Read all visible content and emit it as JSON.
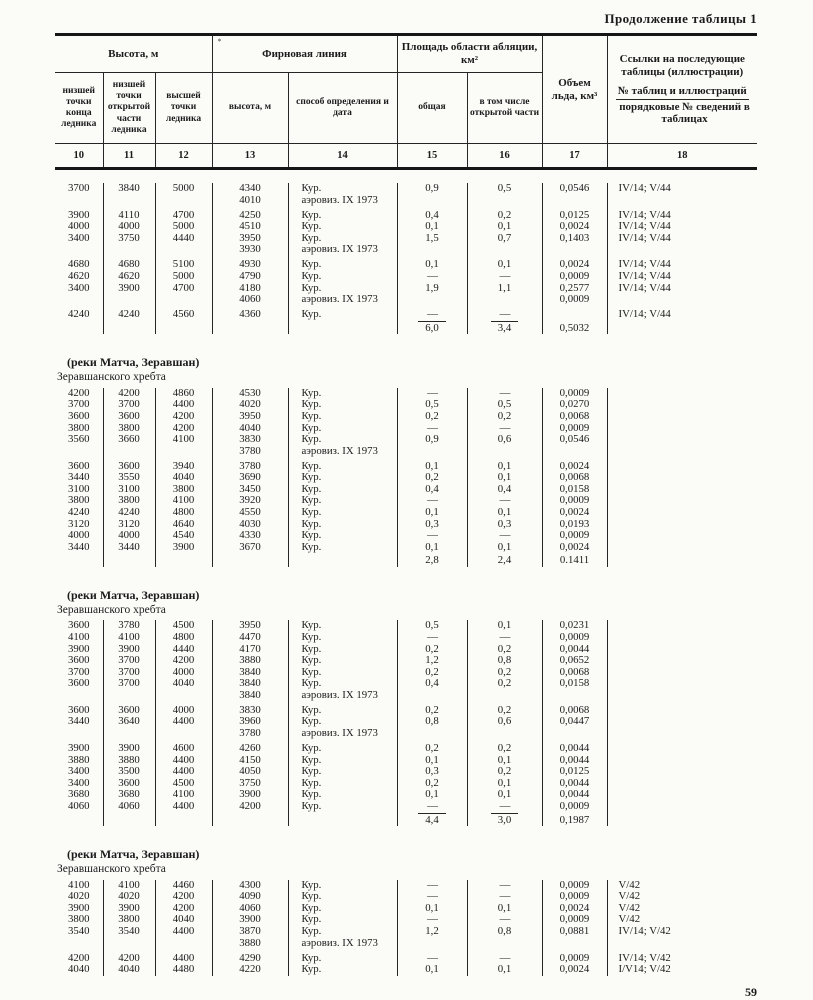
{
  "page": {
    "continuation": "Продолжение таблицы 1",
    "page_number": "59"
  },
  "colors": {
    "ink": "#1b1b1b",
    "paper": "#fbfbf8"
  },
  "header": {
    "groups": {
      "height": "Высота, м",
      "firn": "Фирновая линия",
      "ablation": "Площадь области абляции, км²",
      "volume": "Объем льда, км³"
    },
    "firn_mark": "*",
    "links": {
      "line1": "Ссылки на последующие таблицы (иллюстрации)",
      "line2": "№ таблиц и иллюстраций",
      "line3": "порядковые № сведений в таблицах"
    },
    "subheaders": [
      "низшей точки конца ледника",
      "низшей точки открытой части ледника",
      "высшей точки ледника",
      "высота, м",
      "способ определения и дата",
      "общая",
      "в том числе открытой части"
    ],
    "columns": [
      "10",
      "11",
      "12",
      "13",
      "14",
      "15",
      "16",
      "17",
      "18"
    ]
  },
  "sections": [
    {
      "title": "",
      "subtitle": "",
      "rows": [
        {
          "cells": [
            "3700",
            "3840",
            "5000",
            "4340",
            "Кур.",
            "0,9",
            "0,5",
            "0,0546",
            "IV/14; V/44"
          ]
        },
        {
          "cells": [
            "",
            "",
            "",
            "4010",
            "аэровиз. IX 1973",
            "",
            "",
            "",
            ""
          ]
        },
        {
          "cells": [
            "3900",
            "4110",
            "4700",
            "4250",
            "Кур.",
            "0,4",
            "0,2",
            "0,0125",
            "IV/14; V/44"
          ],
          "gap": true
        },
        {
          "cells": [
            "4000",
            "4000",
            "5000",
            "4510",
            "Кур.",
            "0,1",
            "0,1",
            "0,0024",
            "IV/14; V/44"
          ]
        },
        {
          "cells": [
            "3400",
            "3750",
            "4440",
            "3950",
            "Кур.",
            "1,5",
            "0,7",
            "0,1403",
            "IV/14; V/44"
          ]
        },
        {
          "cells": [
            "",
            "",
            "",
            "3930",
            "аэровиз. IX 1973",
            "",
            "",
            "",
            ""
          ]
        },
        {
          "cells": [
            "4680",
            "4680",
            "5100",
            "4930",
            "Кур.",
            "0,1",
            "0,1",
            "0,0024",
            "IV/14; V/44"
          ],
          "gap": true
        },
        {
          "cells": [
            "4620",
            "4620",
            "5000",
            "4790",
            "Кур.",
            "—",
            "—",
            "0,0009",
            "IV/14; V/44"
          ]
        },
        {
          "cells": [
            "3400",
            "3900",
            "4700",
            "4180",
            "Кур.",
            "1,9",
            "1,1",
            "0,2577",
            "IV/14; V/44"
          ]
        },
        {
          "cells": [
            "",
            "",
            "",
            "4060",
            "аэровиз. IX 1973",
            "",
            "",
            "0,0009",
            ""
          ]
        },
        {
          "cells": [
            "4240",
            "4240",
            "4560",
            "4360",
            "Кур.",
            "—",
            "—",
            "",
            "IV/14; V/44"
          ],
          "gap": true
        }
      ],
      "totals": {
        "cells": [
          "",
          "",
          "",
          "",
          "",
          "6,0",
          "3,4",
          "0,5032",
          ""
        ],
        "rule": true
      }
    },
    {
      "title": "(реки Матча, Зеравшан)",
      "subtitle": "Зеравшанского хребта",
      "rows": [
        {
          "cells": [
            "4200",
            "4200",
            "4860",
            "4530",
            "Кур.",
            "—",
            "—",
            "0,0009",
            ""
          ]
        },
        {
          "cells": [
            "3700",
            "3700",
            "4400",
            "4020",
            "Кур.",
            "0,5",
            "0,5",
            "0,0270",
            ""
          ]
        },
        {
          "cells": [
            "3600",
            "3600",
            "4200",
            "3950",
            "Кур.",
            "0,2",
            "0,2",
            "0,0068",
            ""
          ]
        },
        {
          "cells": [
            "3800",
            "3800",
            "4200",
            "4040",
            "Кур.",
            "—",
            "—",
            "0,0009",
            ""
          ]
        },
        {
          "cells": [
            "3560",
            "3660",
            "4100",
            "3830",
            "Кур.",
            "0,9",
            "0,6",
            "0,0546",
            ""
          ]
        },
        {
          "cells": [
            "",
            "",
            "",
            "3780",
            "аэровиз. IX 1973",
            "",
            "",
            "",
            ""
          ]
        },
        {
          "cells": [
            "3600",
            "3600",
            "3940",
            "3780",
            "Кур.",
            "0,1",
            "0,1",
            "0,0024",
            ""
          ],
          "gap": true
        },
        {
          "cells": [
            "3440",
            "3550",
            "4040",
            "3690",
            "Кур.",
            "0,2",
            "0,1",
            "0,0068",
            ""
          ]
        },
        {
          "cells": [
            "3100",
            "3100",
            "3800",
            "3450",
            "Кур.",
            "0,4",
            "0,4",
            "0,0158",
            ""
          ]
        },
        {
          "cells": [
            "3800",
            "3800",
            "4100",
            "3920",
            "Кур.",
            "—",
            "—",
            "0,0009",
            ""
          ]
        },
        {
          "cells": [
            "4240",
            "4240",
            "4800",
            "4550",
            "Кур.",
            "0,1",
            "0,1",
            "0,0024",
            ""
          ]
        },
        {
          "cells": [
            "3120",
            "3120",
            "4640",
            "4030",
            "Кур.",
            "0,3",
            "0,3",
            "0,0193",
            ""
          ]
        },
        {
          "cells": [
            "4000",
            "4000",
            "4540",
            "4330",
            "Кур.",
            "—",
            "—",
            "0,0009",
            ""
          ]
        },
        {
          "cells": [
            "3440",
            "3440",
            "3900",
            "3670",
            "Кур.",
            "0,1",
            "0,1",
            "0,0024",
            ""
          ]
        }
      ],
      "totals": {
        "cells": [
          "",
          "",
          "",
          "",
          "",
          "2,8",
          "2,4",
          "0.1411",
          ""
        ],
        "rule": false
      }
    },
    {
      "title": "(реки Матча, Зеравшан)",
      "subtitle": "Зеравшанского хребта",
      "rows": [
        {
          "cells": [
            "3600",
            "3780",
            "4500",
            "3950",
            "Кур.",
            "0,5",
            "0,1",
            "0,0231",
            ""
          ]
        },
        {
          "cells": [
            "4100",
            "4100",
            "4800",
            "4470",
            "Кур.",
            "—",
            "—",
            "0,0009",
            ""
          ]
        },
        {
          "cells": [
            "3900",
            "3900",
            "4440",
            "4170",
            "Кур.",
            "0,2",
            "0,2",
            "0,0044",
            ""
          ]
        },
        {
          "cells": [
            "3600",
            "3700",
            "4200",
            "3880",
            "Кур.",
            "1,2",
            "0,8",
            "0,0652",
            ""
          ]
        },
        {
          "cells": [
            "3700",
            "3700",
            "4000",
            "3840",
            "Кур.",
            "0,2",
            "0,2",
            "0,0068",
            ""
          ]
        },
        {
          "cells": [
            "3600",
            "3700",
            "4040",
            "3840",
            "Кур.",
            "0,4",
            "0,2",
            "0,0158",
            ""
          ]
        },
        {
          "cells": [
            "",
            "",
            "",
            "3840",
            "аэровиз. IX 1973",
            "",
            "",
            "",
            ""
          ]
        },
        {
          "cells": [
            "3600",
            "3600",
            "4000",
            "3830",
            "Кур.",
            "0,2",
            "0,2",
            "0,0068",
            ""
          ],
          "gap": true
        },
        {
          "cells": [
            "3440",
            "3640",
            "4400",
            "3960",
            "Кур.",
            "0,8",
            "0,6",
            "0,0447",
            ""
          ]
        },
        {
          "cells": [
            "",
            "",
            "",
            "3780",
            "аэровиз. IX 1973",
            "",
            "",
            "",
            ""
          ]
        },
        {
          "cells": [
            "3900",
            "3900",
            "4600",
            "4260",
            "Кур.",
            "0,2",
            "0,2",
            "0,0044",
            ""
          ],
          "gap": true
        },
        {
          "cells": [
            "3880",
            "3880",
            "4400",
            "4150",
            "Кур.",
            "0,1",
            "0,1",
            "0,0044",
            ""
          ]
        },
        {
          "cells": [
            "3400",
            "3500",
            "4400",
            "4050",
            "Кур.",
            "0,3",
            "0,2",
            "0,0125",
            ""
          ]
        },
        {
          "cells": [
            "3400",
            "3600",
            "4500",
            "3750",
            "Кур.",
            "0,2",
            "0,1",
            "0,0044",
            ""
          ]
        },
        {
          "cells": [
            "3680",
            "3680",
            "4100",
            "3900",
            "Кур.",
            "0,1",
            "0,1",
            "0,0044",
            ""
          ]
        },
        {
          "cells": [
            "4060",
            "4060",
            "4400",
            "4200",
            "Кур.",
            "—",
            "—",
            "0,0009",
            ""
          ]
        }
      ],
      "totals": {
        "cells": [
          "",
          "",
          "",
          "",
          "",
          "4,4",
          "3,0",
          "0,1987",
          ""
        ],
        "rule": true
      }
    },
    {
      "title": "(реки Матча, Зеравшан)",
      "subtitle": "Зеравшанского хребта",
      "rows": [
        {
          "cells": [
            "4100",
            "4100",
            "4460",
            "4300",
            "Кур.",
            "—",
            "—",
            "0,0009",
            "V/42"
          ]
        },
        {
          "cells": [
            "4020",
            "4020",
            "4200",
            "4090",
            "Кур.",
            "—",
            "—",
            "0,0009",
            "V/42"
          ]
        },
        {
          "cells": [
            "3900",
            "3900",
            "4200",
            "4060",
            "Кур.",
            "0,1",
            "0,1",
            "0,0024",
            "V/42"
          ]
        },
        {
          "cells": [
            "3800",
            "3800",
            "4040",
            "3900",
            "Кур.",
            "—",
            "—",
            "0,0009",
            "V/42"
          ]
        },
        {
          "cells": [
            "3540",
            "3540",
            "4400",
            "3870",
            "Кур.",
            "1,2",
            "0,8",
            "0,0881",
            "IV/14; V/42"
          ]
        },
        {
          "cells": [
            "",
            "",
            "",
            "3880",
            "аэровиз. IX 1973",
            "",
            "",
            "",
            ""
          ]
        },
        {
          "cells": [
            "4200",
            "4200",
            "4400",
            "4290",
            "Кур.",
            "—",
            "—",
            "0,0009",
            "IV/14; V/42"
          ],
          "gap": true
        },
        {
          "cells": [
            "4040",
            "4040",
            "4480",
            "4220",
            "Кур.",
            "0,1",
            "0,1",
            "0,0024",
            "I/V14; V/42"
          ]
        }
      ],
      "totals": null
    }
  ]
}
